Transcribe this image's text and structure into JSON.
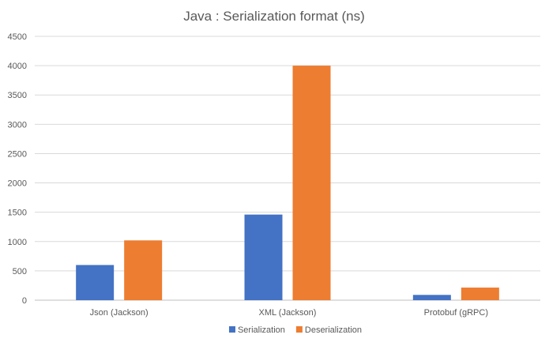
{
  "chart_data": {
    "type": "bar",
    "title": "Java : Serialization format (ns)",
    "xlabel": "",
    "ylabel": "",
    "categories": [
      "Json (Jackson)",
      "XML (Jackson)",
      "Protobuf (gRPC)"
    ],
    "series": [
      {
        "name": "Serialization",
        "color": "#4472C4",
        "values": [
          600,
          1460,
          90
        ]
      },
      {
        "name": "Deserialization",
        "color": "#ED7D31",
        "values": [
          1020,
          4000,
          215
        ]
      }
    ],
    "ylim": [
      0,
      4500
    ],
    "yticks": [
      "0",
      "500",
      "1000",
      "1500",
      "2000",
      "2500",
      "3000",
      "3500",
      "4000",
      "4500"
    ],
    "grid": true,
    "legend_position": "bottom"
  }
}
